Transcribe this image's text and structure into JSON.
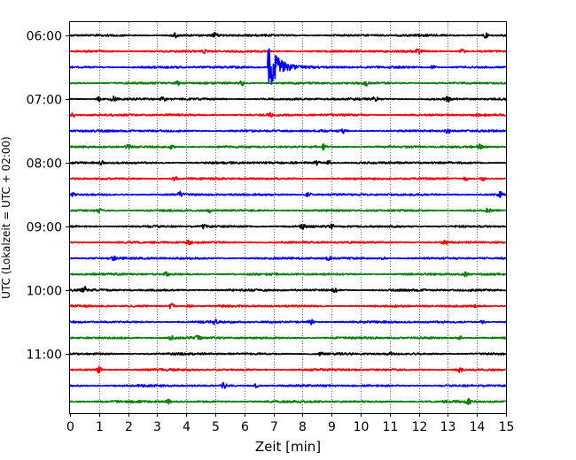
{
  "chart_data": {
    "type": "line",
    "title": "",
    "xlabel": "Zeit  [min]",
    "ylabel": "UTC (Lokalzeit = UTC + 02:00)",
    "xlim": [
      0,
      15
    ],
    "x_ticks": [
      "0",
      "1",
      "2",
      "3",
      "4",
      "5",
      "6",
      "7",
      "8",
      "9",
      "10",
      "11",
      "12",
      "13",
      "14",
      "15"
    ],
    "y_ticks": [
      "06:00",
      "07:00",
      "08:00",
      "09:00",
      "10:00",
      "11:00"
    ],
    "grid": "vertical dotted at each minute",
    "trace_interval_minutes": 15,
    "start_time": "06:00",
    "colors": [
      "#000000",
      "#ff0000",
      "#0000ff",
      "#008000"
    ],
    "traces": [
      {
        "hour": "06:00",
        "offset_min": 0,
        "color": "#000000",
        "events": [
          {
            "t": 3.6,
            "amp": 0.35
          },
          {
            "t": 5.0,
            "amp": 0.4
          },
          {
            "t": 14.3,
            "amp": 0.35
          }
        ]
      },
      {
        "hour": "06:00",
        "offset_min": 15,
        "color": "#ff0000",
        "events": [
          {
            "t": 4.6,
            "amp": 0.25
          },
          {
            "t": 12.0,
            "amp": 0.5
          },
          {
            "t": 13.5,
            "amp": 0.3
          }
        ]
      },
      {
        "hour": "06:00",
        "offset_min": 30,
        "color": "#0000ff",
        "events": [
          {
            "t": 6.85,
            "amp": 3.5
          },
          {
            "t": 12.5,
            "amp": 0.3
          }
        ]
      },
      {
        "hour": "06:00",
        "offset_min": 45,
        "color": "#008000",
        "events": [
          {
            "t": 3.7,
            "amp": 0.25
          },
          {
            "t": 5.9,
            "amp": 0.35
          },
          {
            "t": 10.2,
            "amp": 0.3
          }
        ]
      },
      {
        "hour": "07:00",
        "offset_min": 0,
        "color": "#000000",
        "events": [
          {
            "t": 1.0,
            "amp": 0.3
          },
          {
            "t": 1.5,
            "amp": 0.35
          },
          {
            "t": 3.2,
            "amp": 0.3
          },
          {
            "t": 10.5,
            "amp": 0.45
          },
          {
            "t": 13.0,
            "amp": 0.35
          }
        ]
      },
      {
        "hour": "07:00",
        "offset_min": 15,
        "color": "#ff0000",
        "events": [
          {
            "t": 0.1,
            "amp": 0.3
          },
          {
            "t": 6.9,
            "amp": 0.25
          },
          {
            "t": 14.0,
            "amp": 0.25
          }
        ]
      },
      {
        "hour": "07:00",
        "offset_min": 30,
        "color": "#0000ff",
        "events": [
          {
            "t": 9.4,
            "amp": 0.3
          },
          {
            "t": 13.0,
            "amp": 0.35
          }
        ]
      },
      {
        "hour": "07:00",
        "offset_min": 45,
        "color": "#008000",
        "events": [
          {
            "t": 2.0,
            "amp": 0.3
          },
          {
            "t": 3.5,
            "amp": 0.3
          },
          {
            "t": 8.7,
            "amp": 0.35
          },
          {
            "t": 14.1,
            "amp": 0.3
          }
        ]
      },
      {
        "hour": "08:00",
        "offset_min": 0,
        "color": "#000000",
        "events": [
          {
            "t": 1.1,
            "amp": 0.25
          },
          {
            "t": 8.5,
            "amp": 0.35
          },
          {
            "t": 8.9,
            "amp": 0.35
          }
        ]
      },
      {
        "hour": "08:00",
        "offset_min": 15,
        "color": "#ff0000",
        "events": [
          {
            "t": 3.6,
            "amp": 0.35
          },
          {
            "t": 13.6,
            "amp": 0.35
          },
          {
            "t": 14.2,
            "amp": 0.3
          }
        ]
      },
      {
        "hour": "08:00",
        "offset_min": 30,
        "color": "#0000ff",
        "events": [
          {
            "t": 0.1,
            "amp": 0.3
          },
          {
            "t": 3.8,
            "amp": 0.35
          },
          {
            "t": 8.2,
            "amp": 0.4
          },
          {
            "t": 14.8,
            "amp": 0.35
          }
        ]
      },
      {
        "hour": "08:00",
        "offset_min": 45,
        "color": "#008000",
        "events": [
          {
            "t": 1.0,
            "amp": 0.25
          },
          {
            "t": 4.8,
            "amp": 0.25
          },
          {
            "t": 14.4,
            "amp": 0.35
          }
        ]
      },
      {
        "hour": "09:00",
        "offset_min": 0,
        "color": "#000000",
        "events": [
          {
            "t": 4.6,
            "amp": 0.3
          },
          {
            "t": 8.0,
            "amp": 0.3
          },
          {
            "t": 9.0,
            "amp": 0.3
          }
        ]
      },
      {
        "hour": "09:00",
        "offset_min": 15,
        "color": "#ff0000",
        "events": [
          {
            "t": 4.1,
            "amp": 0.4
          },
          {
            "t": 12.9,
            "amp": 0.3
          }
        ]
      },
      {
        "hour": "09:00",
        "offset_min": 30,
        "color": "#0000ff",
        "events": [
          {
            "t": 1.5,
            "amp": 0.35
          },
          {
            "t": 8.9,
            "amp": 0.3
          },
          {
            "t": 10.8,
            "amp": 0.3
          }
        ]
      },
      {
        "hour": "09:00",
        "offset_min": 45,
        "color": "#008000",
        "events": [
          {
            "t": 3.3,
            "amp": 0.3
          },
          {
            "t": 13.6,
            "amp": 0.3
          }
        ]
      },
      {
        "hour": "10:00",
        "offset_min": 0,
        "color": "#000000",
        "events": [
          {
            "t": 0.5,
            "amp": 0.45
          },
          {
            "t": 9.1,
            "amp": 0.25
          }
        ]
      },
      {
        "hour": "10:00",
        "offset_min": 15,
        "color": "#ff0000",
        "events": [
          {
            "t": 3.5,
            "amp": 0.5
          },
          {
            "t": 4.1,
            "amp": 0.3
          },
          {
            "t": 14.0,
            "amp": 0.25
          }
        ]
      },
      {
        "hour": "10:00",
        "offset_min": 30,
        "color": "#0000ff",
        "events": [
          {
            "t": 5.0,
            "amp": 0.35
          },
          {
            "t": 8.3,
            "amp": 0.4
          },
          {
            "t": 14.2,
            "amp": 0.25
          }
        ]
      },
      {
        "hour": "10:00",
        "offset_min": 45,
        "color": "#008000",
        "events": [
          {
            "t": 3.5,
            "amp": 0.3
          },
          {
            "t": 4.4,
            "amp": 0.3
          },
          {
            "t": 13.4,
            "amp": 0.3
          }
        ]
      },
      {
        "hour": "11:00",
        "offset_min": 0,
        "color": "#000000",
        "events": [
          {
            "t": 8.6,
            "amp": 0.3
          },
          {
            "t": 11.0,
            "amp": 0.25
          }
        ]
      },
      {
        "hour": "11:00",
        "offset_min": 15,
        "color": "#ff0000",
        "events": [
          {
            "t": 1.0,
            "amp": 0.45
          },
          {
            "t": 13.4,
            "amp": 0.35
          }
        ]
      },
      {
        "hour": "11:00",
        "offset_min": 30,
        "color": "#0000ff",
        "events": [
          {
            "t": 5.3,
            "amp": 0.4
          },
          {
            "t": 6.4,
            "amp": 0.25
          }
        ]
      },
      {
        "hour": "11:00",
        "offset_min": 45,
        "color": "#008000",
        "events": [
          {
            "t": 3.4,
            "amp": 0.3
          },
          {
            "t": 13.7,
            "amp": 0.35
          }
        ]
      }
    ]
  }
}
